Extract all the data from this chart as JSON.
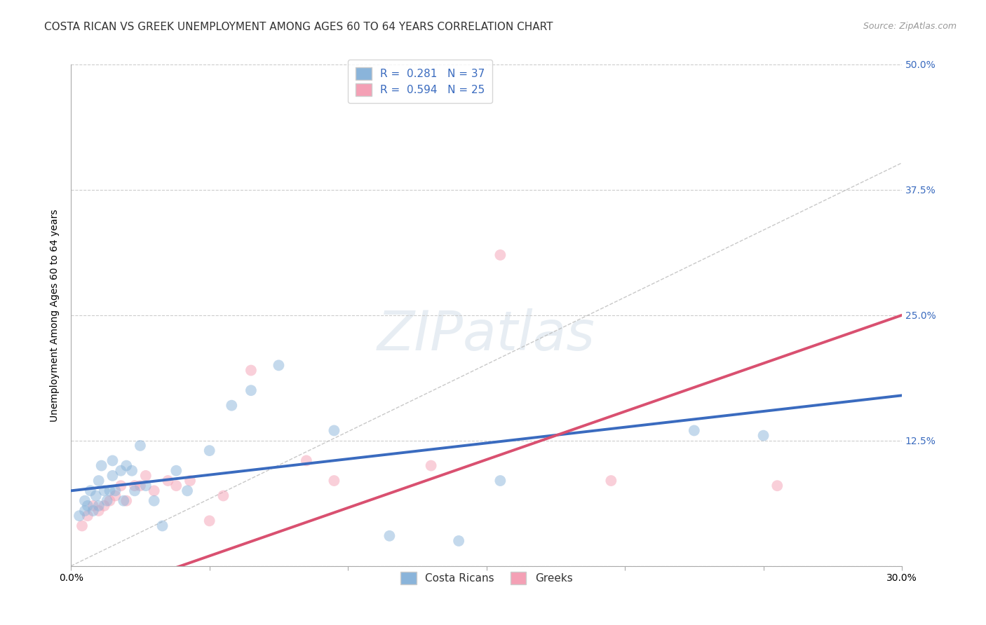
{
  "title": "COSTA RICAN VS GREEK UNEMPLOYMENT AMONG AGES 60 TO 64 YEARS CORRELATION CHART",
  "source": "Source: ZipAtlas.com",
  "ylabel": "Unemployment Among Ages 60 to 64 years",
  "xlim": [
    0.0,
    0.3
  ],
  "ylim": [
    0.0,
    0.5
  ],
  "xticks": [
    0.0,
    0.05,
    0.1,
    0.15,
    0.2,
    0.25,
    0.3
  ],
  "xtick_labels": [
    "0.0%",
    "",
    "",
    "",
    "",
    "",
    "30.0%"
  ],
  "yticks": [
    0.0,
    0.125,
    0.25,
    0.375,
    0.5
  ],
  "ytick_labels_right": [
    "",
    "12.5%",
    "25.0%",
    "37.5%",
    "50.0%"
  ],
  "r_blue": 0.281,
  "n_blue": 37,
  "r_pink": 0.594,
  "n_pink": 25,
  "blue_color": "#8ab4da",
  "pink_color": "#f4a0b5",
  "blue_line_color": "#3a6bbf",
  "pink_line_color": "#d95070",
  "legend_blue_label": "Costa Ricans",
  "legend_pink_label": "Greeks",
  "blue_points_x": [
    0.003,
    0.005,
    0.005,
    0.006,
    0.007,
    0.008,
    0.009,
    0.01,
    0.01,
    0.011,
    0.012,
    0.013,
    0.014,
    0.015,
    0.015,
    0.016,
    0.018,
    0.019,
    0.02,
    0.022,
    0.023,
    0.025,
    0.027,
    0.03,
    0.033,
    0.038,
    0.042,
    0.05,
    0.058,
    0.065,
    0.075,
    0.095,
    0.115,
    0.14,
    0.155,
    0.225,
    0.25
  ],
  "blue_points_y": [
    0.05,
    0.055,
    0.065,
    0.06,
    0.075,
    0.055,
    0.07,
    0.06,
    0.085,
    0.1,
    0.075,
    0.065,
    0.075,
    0.09,
    0.105,
    0.075,
    0.095,
    0.065,
    0.1,
    0.095,
    0.075,
    0.12,
    0.08,
    0.065,
    0.04,
    0.095,
    0.075,
    0.115,
    0.16,
    0.175,
    0.2,
    0.135,
    0.03,
    0.025,
    0.085,
    0.135,
    0.13
  ],
  "pink_points_x": [
    0.004,
    0.006,
    0.008,
    0.01,
    0.012,
    0.014,
    0.016,
    0.018,
    0.02,
    0.023,
    0.025,
    0.027,
    0.03,
    0.035,
    0.038,
    0.043,
    0.05,
    0.055,
    0.065,
    0.085,
    0.095,
    0.13,
    0.155,
    0.195,
    0.255
  ],
  "pink_points_y": [
    0.04,
    0.05,
    0.06,
    0.055,
    0.06,
    0.065,
    0.07,
    0.08,
    0.065,
    0.08,
    0.08,
    0.09,
    0.075,
    0.085,
    0.08,
    0.085,
    0.045,
    0.07,
    0.195,
    0.105,
    0.085,
    0.1,
    0.31,
    0.085,
    0.08
  ],
  "watermark_text": "ZIPatlas",
  "background_color": "#ffffff",
  "grid_color": "#cccccc",
  "title_fontsize": 11,
  "axis_label_fontsize": 10,
  "tick_fontsize": 10,
  "point_size": 130,
  "point_alpha": 0.5,
  "line_width": 2.8
}
